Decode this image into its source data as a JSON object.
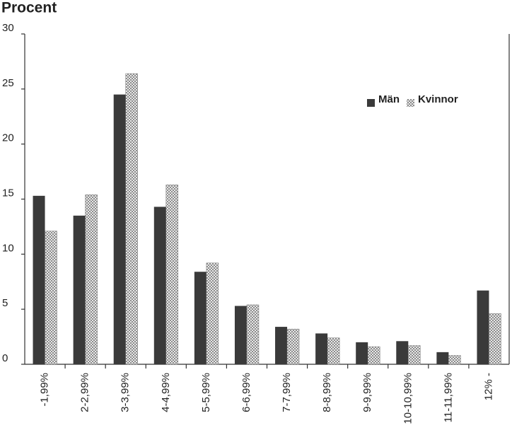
{
  "chart_data": {
    "type": "bar",
    "title": "Procent",
    "categories": [
      "-1,99%",
      "2-2,99%",
      "3-3,99%",
      "4-4,99%",
      "5-5,99%",
      "6-6,99%",
      "7-7,99%",
      "8-8,99%",
      "9-9,99%",
      "10-10,99%",
      "11-11,99%",
      "12% -"
    ],
    "series": [
      {
        "name": "Män",
        "color": "#3a3a3a",
        "values": [
          15.3,
          13.5,
          24.5,
          14.3,
          8.4,
          5.3,
          3.4,
          2.8,
          2.0,
          2.1,
          1.1,
          6.7
        ]
      },
      {
        "name": "Kvinnor",
        "color": "#8c8c8c",
        "values": [
          12.1,
          15.4,
          26.4,
          16.3,
          9.2,
          5.4,
          3.2,
          2.4,
          1.6,
          1.7,
          0.8,
          4.6
        ]
      }
    ],
    "ylim": [
      0,
      30
    ],
    "yticks": [
      0,
      5,
      10,
      15,
      20,
      25,
      30
    ],
    "grid": false,
    "legend": "upper-right"
  }
}
